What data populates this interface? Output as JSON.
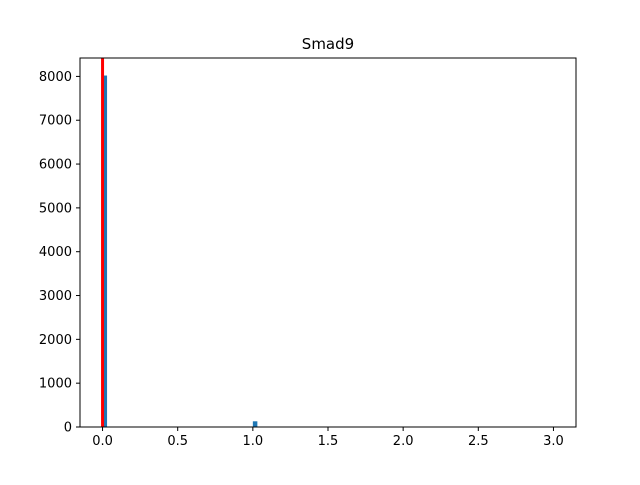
{
  "chart_data": {
    "type": "bar",
    "title": "Smad9",
    "xlabel": "",
    "ylabel": "",
    "xlim": [
      -0.15,
      3.15
    ],
    "ylim": [
      0,
      8420
    ],
    "x_ticks": [
      0.0,
      0.5,
      1.0,
      1.5,
      2.0,
      2.5,
      3.0
    ],
    "x_tick_labels": [
      "0.0",
      "0.5",
      "1.0",
      "1.5",
      "2.0",
      "2.5",
      "3.0"
    ],
    "y_ticks": [
      0,
      1000,
      2000,
      3000,
      4000,
      5000,
      6000,
      7000,
      8000
    ],
    "y_tick_labels": [
      "0",
      "1000",
      "2000",
      "3000",
      "4000",
      "5000",
      "6000",
      "7000",
      "8000"
    ],
    "bin_width": 0.03,
    "bars": [
      {
        "x": 0.0,
        "value": 8020
      },
      {
        "x": 1.0,
        "value": 130
      }
    ],
    "vline_x": 0.0,
    "grid": false,
    "colors": {
      "bar": "#1f77b4",
      "vline": "#ff0000",
      "axes": "#000000"
    }
  }
}
